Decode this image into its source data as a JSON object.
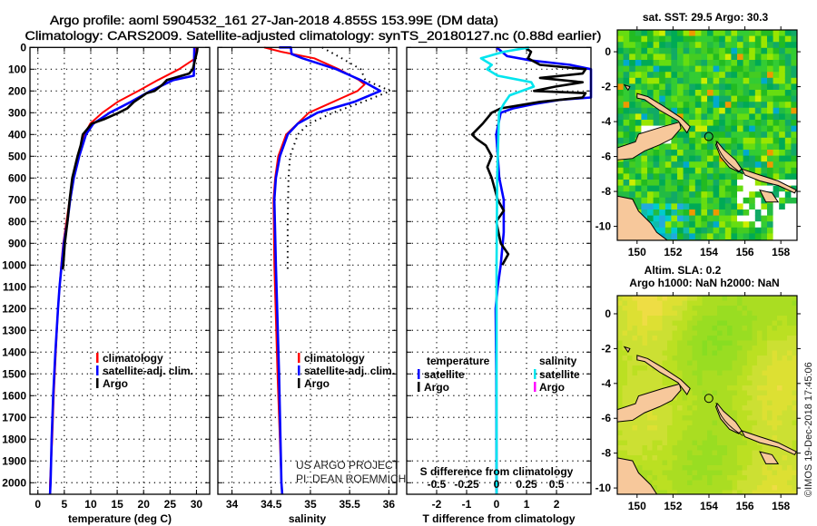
{
  "header": {
    "title_line1": "Argo profile: aoml 5904532_161 27-Jan-2018 4.855S 153.99E (DM data)",
    "title_line2": "Climatology: CARS2009. Satellite-adjusted climatology: synTS_20180127.nc (0.88d earlier)"
  },
  "credits": {
    "project": "US ARGO PROJECT",
    "pi": "PI: DEAN ROEMMICH",
    "stamp": "©IMOS 19-Dec-2018 17:45:06"
  },
  "colors": {
    "climatology": "#ff0000",
    "satellite": "#0000ff",
    "argo": "#000000",
    "salinity_satellite": "#00e5ee",
    "salinity_argo": "#ff00ff"
  },
  "chart_data": [
    {
      "type": "line",
      "id": "temperature",
      "xlabel": "temperature (deg C)",
      "ylabel": "",
      "xlim": [
        -1.5,
        32.5
      ],
      "ylim": [
        0,
        2053
      ],
      "y_reversed": true,
      "xticks": [
        "0",
        "5",
        "10",
        "15",
        "20",
        "25",
        "30"
      ],
      "xtick_values": [
        0,
        5,
        10,
        15,
        20,
        25,
        30
      ],
      "yticks": [
        "0",
        "100",
        "200",
        "300",
        "400",
        "500",
        "600",
        "700",
        "800",
        "900",
        "1000",
        "1100",
        "1200",
        "1300",
        "1400",
        "1500",
        "1600",
        "1700",
        "1800",
        "1900",
        "2000"
      ],
      "ytick_values": [
        0,
        100,
        200,
        300,
        400,
        500,
        600,
        700,
        800,
        900,
        1000,
        1100,
        1200,
        1300,
        1400,
        1500,
        1600,
        1700,
        1800,
        1900,
        2000
      ],
      "grid": true,
      "legend": {
        "placement": "bottom-right",
        "items": [
          "climatology",
          "satellite-adj. clim.",
          "Argo"
        ]
      },
      "series": [
        {
          "name": "climatology",
          "color": "#ff0000",
          "depth": [
            0,
            50,
            100,
            150,
            200,
            250,
            300,
            350,
            400,
            500,
            600,
            700,
            800,
            900,
            1000,
            1200,
            1400,
            1600,
            1800,
            2000,
            2053
          ],
          "values": [
            30.0,
            29.8,
            26.7,
            22.7,
            19.0,
            15.1,
            12.2,
            9.9,
            8.8,
            7.5,
            6.5,
            6.0,
            5.4,
            4.8,
            4.4,
            3.8,
            3.4,
            3.0,
            2.7,
            2.3,
            2.3
          ]
        },
        {
          "name": "satellite-adj. clim.",
          "color": "#0000ff",
          "depth": [
            0,
            130,
            150,
            200,
            250,
            300,
            350,
            400,
            500,
            600,
            700,
            800,
            900,
            1000,
            1100,
            1200,
            1400,
            1600,
            1800,
            2000,
            2053
          ],
          "values": [
            29.6,
            29.5,
            25.6,
            21.3,
            17.6,
            13.6,
            10.5,
            9.1,
            7.8,
            6.8,
            6.1,
            5.6,
            4.9,
            4.5,
            4.1,
            3.8,
            3.3,
            2.9,
            2.6,
            2.4,
            2.3
          ]
        },
        {
          "name": "Argo",
          "color": "#000000",
          "depth": [
            0,
            20,
            100,
            120,
            150,
            170,
            200,
            210,
            250,
            280,
            300,
            330,
            350,
            400,
            450,
            500,
            600,
            700,
            800,
            900,
            1000,
            1020
          ],
          "values": [
            30.2,
            30.1,
            29.3,
            28.6,
            24.4,
            23.6,
            22.1,
            20.6,
            18.2,
            16.9,
            15.3,
            12.5,
            10.2,
            8.5,
            8.1,
            7.5,
            6.5,
            6.0,
            5.6,
            5.1,
            4.8,
            4.7
          ]
        }
      ]
    },
    {
      "type": "line",
      "id": "salinity",
      "xlabel": "salinity",
      "xlim": [
        33.82,
        36.1
      ],
      "ylim": [
        0,
        2053
      ],
      "y_reversed": true,
      "xticks": [
        "34",
        "34.5",
        "35",
        "35.5",
        "36"
      ],
      "xtick_values": [
        34,
        34.5,
        35,
        35.5,
        36
      ],
      "grid": true,
      "legend": {
        "placement": "bottom-right",
        "items": [
          "climatology",
          "satellite-adj. clim.",
          "Argo"
        ]
      },
      "series": [
        {
          "name": "climatology",
          "color": "#ff0000",
          "depth": [
            0,
            20,
            50,
            100,
            150,
            170,
            200,
            250,
            300,
            400,
            500,
            600,
            700,
            1000,
            1500,
            2000,
            2053
          ],
          "values": [
            34.41,
            34.63,
            35.05,
            35.36,
            35.62,
            35.69,
            35.6,
            35.29,
            34.98,
            34.69,
            34.59,
            34.55,
            34.53,
            34.54,
            34.58,
            34.63,
            34.64
          ]
        },
        {
          "name": "satellite-adj. clim.",
          "color": "#0000ff",
          "depth": [
            0,
            0,
            30,
            50,
            100,
            150,
            200,
            250,
            300,
            350,
            400,
            500,
            600,
            700,
            1000,
            1500,
            2000,
            2053
          ],
          "values": [
            34.6,
            34.75,
            34.76,
            34.9,
            35.33,
            35.64,
            35.89,
            35.56,
            35.09,
            34.84,
            34.71,
            34.61,
            34.56,
            34.54,
            34.56,
            34.6,
            34.63,
            34.64
          ]
        },
        {
          "name": "Argo",
          "color": "#000000",
          "style": "dotted",
          "depth": [
            0,
            50,
            100,
            150,
            200,
            250,
            300,
            350,
            400,
            500,
            600,
            800,
            1000,
            1020
          ],
          "values": [
            35.15,
            35.4,
            35.64,
            35.7,
            36.02,
            35.67,
            35.29,
            34.98,
            34.84,
            34.74,
            34.72,
            34.71,
            34.71,
            34.71
          ]
        }
      ]
    },
    {
      "type": "line",
      "id": "difference",
      "xlabel": "T difference from climatology",
      "x2label": "S difference from climatology",
      "xlim": [
        -3.0,
        3.15
      ],
      "x2lim": [
        -0.75,
        0.7875
      ],
      "ylim": [
        0,
        2053
      ],
      "y_reversed": true,
      "xticks": [
        "-2",
        "-1",
        "0",
        "1",
        "2"
      ],
      "xtick_values": [
        -2,
        -1,
        0,
        1,
        2
      ],
      "x2ticks": [
        "-0.5",
        "-0.25",
        "0",
        "0.25",
        "0.5"
      ],
      "x2tick_values": [
        -0.5,
        -0.25,
        0,
        0.25,
        0.5
      ],
      "grid": true,
      "legend": {
        "placement": "bottom",
        "temperature_title": "temperature",
        "salinity_title": "salinity",
        "items": [
          "satellite",
          "Argo"
        ]
      },
      "series": [
        {
          "name": "temperature satellite",
          "color": "#0000ff",
          "axis": "T",
          "depth": [
            0,
            40,
            60,
            80,
            100,
            230,
            240,
            260,
            280,
            300,
            400,
            600,
            700,
            850,
            1000,
            1100,
            1200,
            1500,
            2000,
            2053
          ],
          "values": [
            0,
            0.35,
            1.15,
            2.46,
            3.15,
            3.15,
            2.16,
            1.25,
            0.55,
            0.14,
            -0.01,
            0.09,
            0.24,
            0.24,
            0.14,
            0.04,
            -0.03,
            -0.01,
            0,
            0
          ]
        },
        {
          "name": "temperature Argo",
          "color": "#000000",
          "axis": "T",
          "depth": [
            0,
            20,
            50,
            80,
            100,
            120,
            140,
            160,
            180,
            200,
            210,
            230,
            250,
            280,
            300,
            350,
            400,
            420,
            450,
            500,
            550,
            600,
            650,
            700,
            750,
            800,
            900,
            950,
            1000
          ],
          "values": [
            0.95,
            1.15,
            1.05,
            1.45,
            2.97,
            2.87,
            1.45,
            2.87,
            1.96,
            1.25,
            2.97,
            2.87,
            1.45,
            0.14,
            -0.16,
            -0.46,
            -0.82,
            -0.67,
            -0.36,
            -0.16,
            -0.31,
            -0.16,
            -0.06,
            0.04,
            0.24,
            -0.01,
            0.14,
            0.39,
            0.19
          ]
        },
        {
          "name": "salinity satellite",
          "color": "#00e5ee",
          "axis": "S",
          "depth": [
            0,
            20,
            50,
            80,
            100,
            130,
            160,
            180,
            220,
            260,
            300,
            400,
            600,
            1000,
            2053
          ],
          "values": [
            0.27,
            0.06,
            -0.13,
            -0.04,
            -0.08,
            0.01,
            0.29,
            0.31,
            0.11,
            0.06,
            0.02,
            0.015,
            0.005,
            0,
            0
          ]
        }
      ]
    },
    {
      "type": "heatmap",
      "id": "sst-map",
      "title": "sat. SST: 29.5 Argo: 30.3",
      "xlim": [
        148.9,
        158.9
      ],
      "ylim": [
        -10.8,
        1.25
      ],
      "xticks": [
        "150",
        "152",
        "154",
        "156",
        "158"
      ],
      "xtick_values": [
        150,
        152,
        154,
        156,
        158
      ],
      "yticks": [
        "0",
        "-2",
        "-4",
        "-6",
        "-8",
        "-10"
      ],
      "ytick_values": [
        0,
        -2,
        -4,
        -6,
        -8,
        -10
      ],
      "marker": {
        "lon": 153.99,
        "lat": -4.855
      }
    },
    {
      "type": "heatmap",
      "id": "sla-map",
      "title": "Altim. SLA: 0.2",
      "subtitle": "Argo h1000: NaN h2000: NaN",
      "xlim": [
        148.9,
        158.9
      ],
      "ylim": [
        -10.36,
        1.04
      ],
      "xticks": [
        "150",
        "152",
        "154",
        "156",
        "158"
      ],
      "xtick_values": [
        150,
        152,
        154,
        156,
        158
      ],
      "yticks": [
        "0",
        "-2",
        "-4",
        "-6",
        "-8",
        "-10"
      ],
      "ytick_values": [
        0,
        -2,
        -4,
        -6,
        -8,
        -10
      ],
      "marker": {
        "lon": 153.99,
        "lat": -4.855
      }
    }
  ]
}
